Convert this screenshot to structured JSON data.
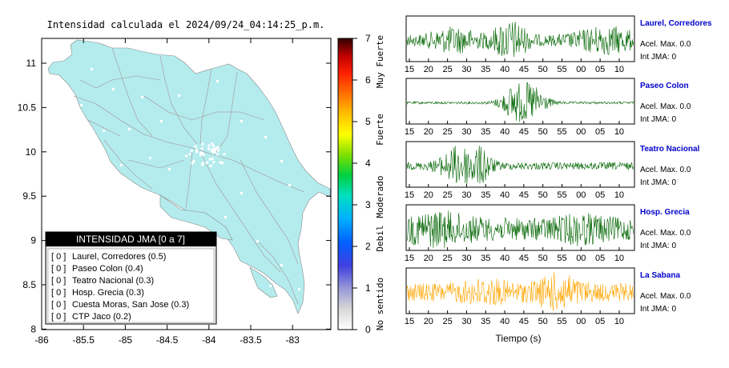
{
  "map": {
    "title": "Intensidad calculada el 2024/09/24_04:14:25_p.m.",
    "x_ticks": [
      "-86",
      "-85.5",
      "-85",
      "-84.5",
      "-84",
      "-83.5",
      "-83"
    ],
    "y_ticks": [
      "11",
      "10.5",
      "10",
      "9.5",
      "9",
      "8.5",
      "8"
    ],
    "land_color": "#b4ecee",
    "legend": {
      "title": "INTENSIDAD JMA [0 a 7]",
      "items": [
        {
          "intensity": "[ 0 ]",
          "label": "Laurel, Corredores (0.5)"
        },
        {
          "intensity": "[ 0 ]",
          "label": "Paseo Colon (0.4)"
        },
        {
          "intensity": "[ 0 ]",
          "label": "Teatro Nacional (0.3)"
        },
        {
          "intensity": "[ 0 ]",
          "label": "Hosp. Grecia (0.3)"
        },
        {
          "intensity": "[ 0 ]",
          "label": "Cuesta Moras, San Jose (0.3)"
        },
        {
          "intensity": "[ 0 ]",
          "label": "CTP Jaco (0.2)"
        }
      ]
    }
  },
  "colorbar": {
    "ticks": [
      "7",
      "6",
      "5",
      "4",
      "3",
      "2",
      "1",
      "0"
    ],
    "labels": [
      "Muy Fuerte",
      "Fuerte",
      "Moderado",
      "Debil",
      "No sentido"
    ]
  },
  "seismograms": {
    "xlabel": "Tiempo (s)",
    "waveform_colors": {
      "green": "#006400",
      "orange": "#ffa500"
    },
    "panels": [
      {
        "name": "Laurel, Corredores",
        "accel": "Acel. Max. 0.0",
        "int": "Int JMA: 0",
        "color": "green",
        "ticks": [
          "15",
          "20",
          "25",
          "30",
          "35",
          "40",
          "45",
          "50",
          "55",
          "00",
          "05",
          "10"
        ]
      },
      {
        "name": "Paseo Colon",
        "accel": "Acel. Max. 0.0",
        "int": "Int JMA: 0",
        "color": "green",
        "ticks": [
          "15",
          "20",
          "25",
          "30",
          "35",
          "40",
          "45",
          "50",
          "55",
          "00",
          "05",
          "10"
        ]
      },
      {
        "name": "Teatro Nacional",
        "accel": "Acel. Max. 0.0",
        "int": "Int JMA: 0",
        "color": "green",
        "ticks": [
          "15",
          "20",
          "25",
          "30",
          "35",
          "40",
          "45",
          "50",
          "55",
          "00",
          "05",
          "10"
        ]
      },
      {
        "name": "Hosp. Grecia",
        "accel": "Acel. Max. 0.0",
        "int": "Int JMA: 0",
        "color": "green",
        "ticks": [
          "15",
          "20",
          "25",
          "30",
          "35",
          "40",
          "45",
          "50",
          "55",
          "00",
          "05",
          "10"
        ]
      },
      {
        "name": "La Sabana",
        "accel": "Acel. Max. 0.0",
        "int": "Int JMA: 0",
        "color": "orange",
        "ticks": [
          "15",
          "20",
          "25",
          "30",
          "35",
          "40",
          "45",
          "50",
          "55",
          "00",
          "05",
          "10"
        ]
      }
    ]
  },
  "chart_data": [
    {
      "type": "heatmap",
      "title": "Intensidad calculada el 2024/09/24_04:14:25_p.m.",
      "xlabel": "",
      "ylabel": "",
      "xlim": [
        -86,
        -82.5
      ],
      "ylim": [
        8,
        11.4
      ],
      "colorbar_range": [
        0,
        7
      ],
      "grid": false,
      "legend": "bottom-left"
    },
    {
      "type": "line",
      "xlabel": "Tiempo (s)",
      "series": [
        {
          "name": "Laurel, Corredores",
          "peak_accel": 0.0,
          "jma_intensity": 0
        },
        {
          "name": "Paseo Colon",
          "peak_accel": 0.0,
          "jma_intensity": 0
        },
        {
          "name": "Teatro Nacional",
          "peak_accel": 0.0,
          "jma_intensity": 0
        },
        {
          "name": "Hosp. Grecia",
          "peak_accel": 0.0,
          "jma_intensity": 0
        },
        {
          "name": "La Sabana",
          "peak_accel": 0.0,
          "jma_intensity": 0
        }
      ]
    }
  ]
}
